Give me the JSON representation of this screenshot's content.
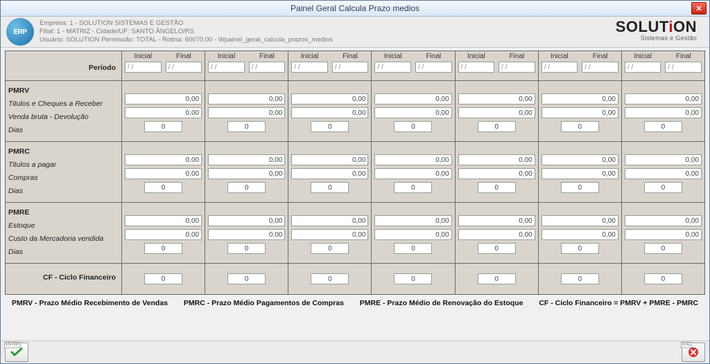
{
  "window": {
    "title": "Painel  Geral Calcula Prazo medios"
  },
  "header": {
    "line1": "Empresa: 1 - SOLUTION SISTEMAS E GESTÃO",
    "line2": "Filial: 1 - MATRIZ - Cidade/UF: SANTO ÂNGELO/RS",
    "line3": "Usuário: SOLUTION            Permissão: TOTAL - Rotina: 60070.00 - Wpainel_geral_calcula_prazos_medios",
    "brand": "SOLUT",
    "brand_i": "i",
    "brand2": "ON",
    "brand_sub": "Sistemas e Gestão",
    "erp_logo": "ERP"
  },
  "labels": {
    "periodo": "Período",
    "inicial": "Inicial",
    "final": "Final",
    "pmrv": "PMRV",
    "pmrv_r1": "Titulos e Cheques a Receber",
    "pmrv_r2": "Venda bruta - Devolução",
    "dias": "Dias",
    "pmrc": "PMRC",
    "pmrc_r1": "Titulos a pagar",
    "pmrc_r2": "Compras",
    "pmre": "PMRE",
    "pmre_r1": "Estoque",
    "pmre_r2": "Custo da Mercadoria vendida",
    "cf": "CF - Ciclo Financeiro"
  },
  "placeholders": {
    "date": "/ /",
    "money": "0,00",
    "int": "0"
  },
  "legend": {
    "a": "PMRV - Prazo Médio Recebimento de Vendas",
    "b": "PMRC - Prazo Médio Pagamentos  de Compras",
    "c": "PMRE - Prazo Médio de Renovação do Estoque",
    "d": "CF - Ciclo Financeiro  = PMRV + PMRE - PMRC"
  },
  "buttons": {
    "enter": "ENTER",
    "esc": "ESC"
  },
  "columns": 7
}
